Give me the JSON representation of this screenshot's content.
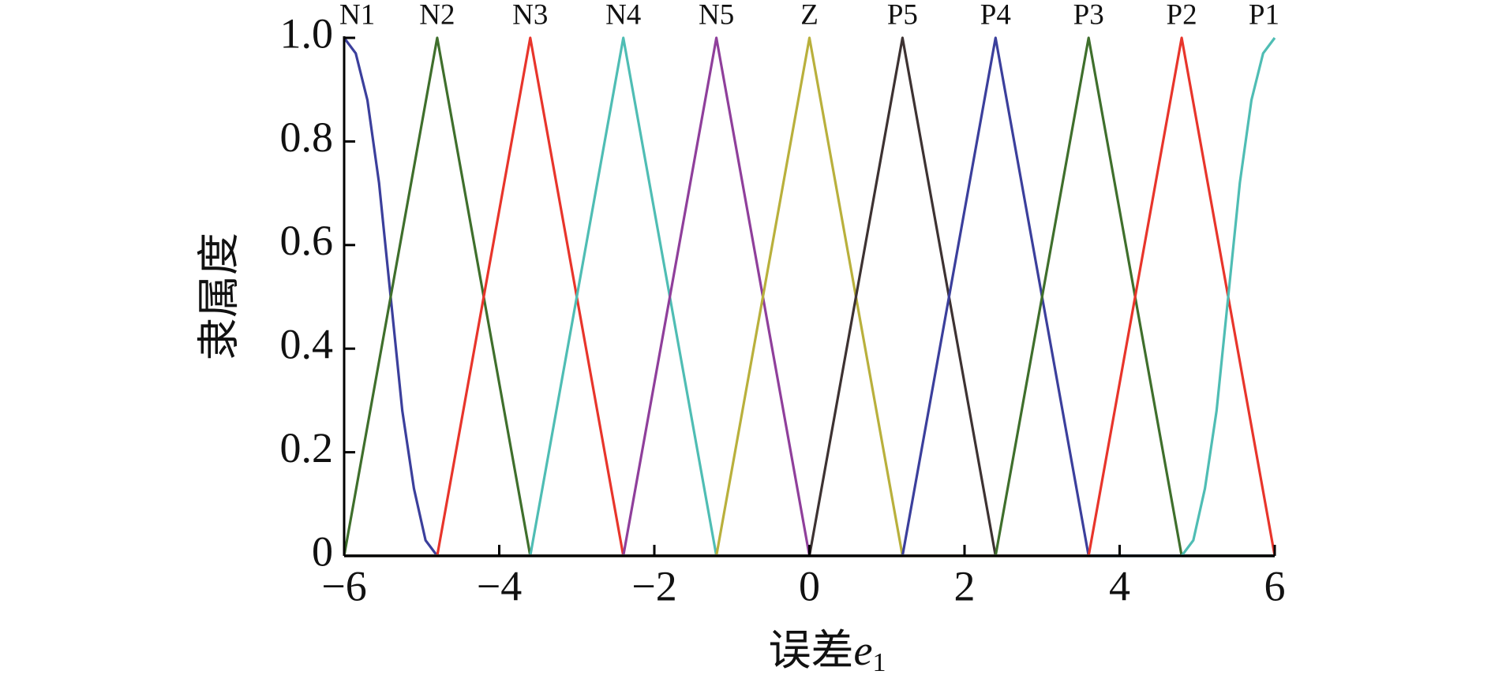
{
  "chart_data": {
    "type": "line",
    "xlabel": [
      "误差",
      "e",
      "1"
    ],
    "ylabel": "隶属度",
    "xlim": [
      -6,
      6
    ],
    "ylim": [
      0,
      1
    ],
    "xticks": [
      {
        "value": -6,
        "label": "−6"
      },
      {
        "value": -4,
        "label": "−4"
      },
      {
        "value": -2,
        "label": "−2"
      },
      0,
      2,
      4,
      6
    ],
    "yticks": [
      0,
      0.2,
      0.4,
      0.6,
      0.8,
      {
        "value": 1,
        "label": "1.0"
      }
    ],
    "grid": false,
    "series": [
      {
        "name": "N1",
        "color": "#3b3f9c",
        "x": [
          -6,
          -5.85,
          -5.7,
          -5.55,
          -5.4,
          -5.25,
          -5.1,
          -4.95,
          -4.8,
          6
        ],
        "values": [
          1,
          0.97,
          0.88,
          0.72,
          0.5,
          0.28,
          0.13,
          0.03,
          0,
          0
        ]
      },
      {
        "name": "N2",
        "color": "#3f6f2c",
        "x": [
          -6,
          -4.8,
          -3.6,
          6
        ],
        "values": [
          0,
          1,
          0,
          0
        ]
      },
      {
        "name": "N3",
        "color": "#e8352b",
        "x": [
          -6,
          -4.8,
          -3.6,
          -2.4,
          6
        ],
        "values": [
          0,
          0,
          1,
          0,
          0
        ]
      },
      {
        "name": "N4",
        "color": "#4fbdb4",
        "x": [
          -6,
          -3.6,
          -2.4,
          -1.2,
          6
        ],
        "values": [
          0,
          0,
          1,
          0,
          0
        ]
      },
      {
        "name": "N5",
        "color": "#8f3f9b",
        "x": [
          -6,
          -2.4,
          -1.2,
          0,
          6
        ],
        "values": [
          0,
          0,
          1,
          0,
          0
        ]
      },
      {
        "name": "Z",
        "color": "#b9b03c",
        "x": [
          -6,
          -1.2,
          0,
          1.2,
          6
        ],
        "values": [
          0,
          0,
          1,
          0,
          0
        ]
      },
      {
        "name": "P5",
        "color": "#3d3232",
        "x": [
          -6,
          0,
          1.2,
          2.4,
          6
        ],
        "values": [
          0,
          0,
          1,
          0,
          0
        ]
      },
      {
        "name": "P4",
        "color": "#3b3f9c",
        "x": [
          -6,
          1.2,
          2.4,
          3.6,
          6
        ],
        "values": [
          0,
          0,
          1,
          0,
          0
        ]
      },
      {
        "name": "P3",
        "color": "#3f6f2c",
        "x": [
          -6,
          2.4,
          3.6,
          4.8,
          6
        ],
        "values": [
          0,
          0,
          1,
          0,
          0
        ]
      },
      {
        "name": "P2",
        "color": "#e8352b",
        "x": [
          -6,
          3.6,
          4.8,
          6
        ],
        "values": [
          0,
          0,
          1,
          0
        ]
      },
      {
        "name": "P1",
        "color": "#4fbdb4",
        "x": [
          -6,
          4.8,
          4.95,
          5.1,
          5.25,
          5.4,
          5.55,
          5.7,
          5.85,
          6
        ],
        "values": [
          0,
          0,
          0.03,
          0.13,
          0.28,
          0.5,
          0.72,
          0.88,
          0.97,
          1
        ]
      }
    ]
  }
}
